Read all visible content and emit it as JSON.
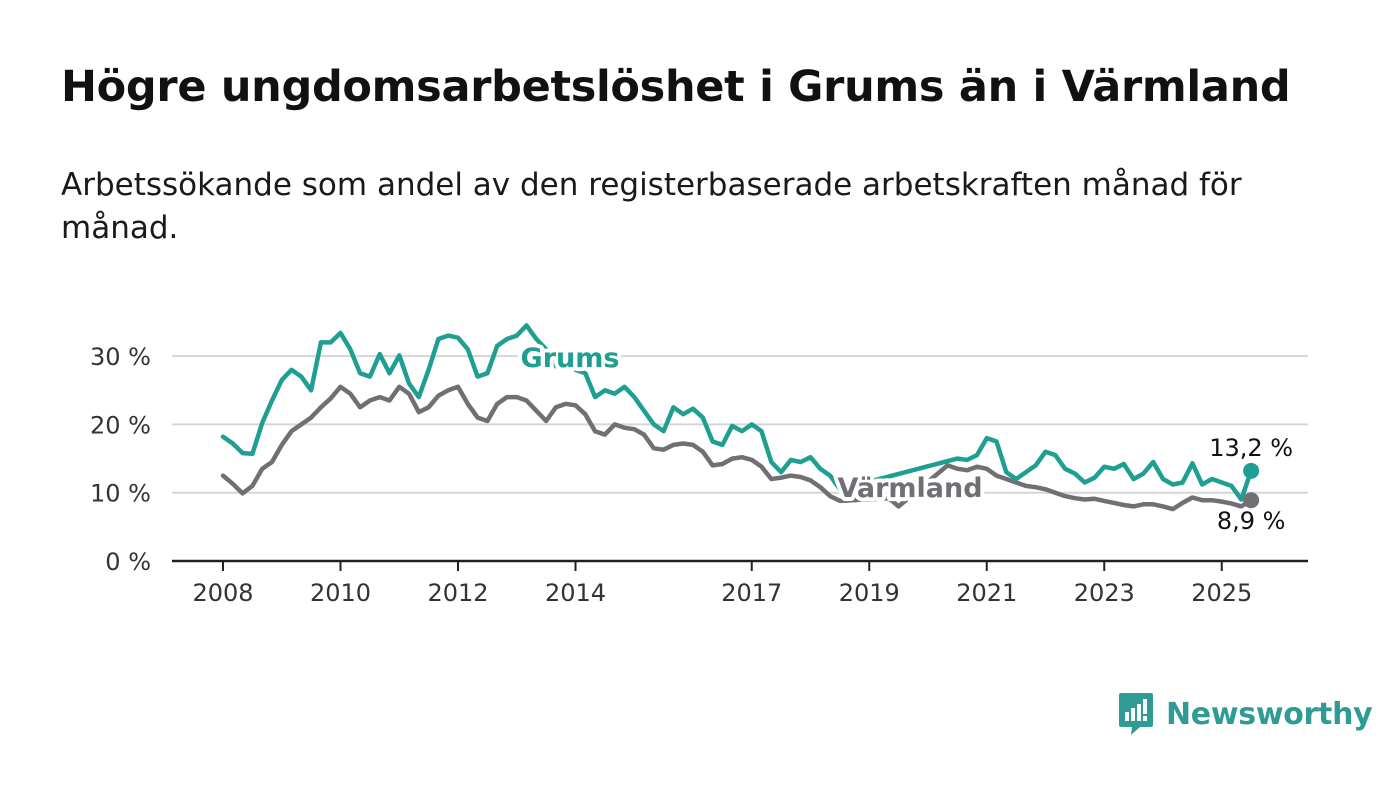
{
  "title": "Högre ungdomsarbetslöshet i Grums än i Värmland",
  "subtitle": "Arbetssökande som andel av den registerbaserade arbetskraften månad för månad.",
  "brand": {
    "name": "Newsworthy",
    "icon": "bar-chart-chat-icon"
  },
  "colors": {
    "accent": "#1f9e92",
    "secondary": "#716e74",
    "grid": "#d6d6d6",
    "axis": "#222222",
    "brand": "#2e9c94"
  },
  "chart_data": {
    "type": "line",
    "title": "Högre ungdomsarbetslöshet i Grums än i Värmland",
    "subtitle": "Arbetssökande som andel av den registerbaserade arbetskraften månad för månad.",
    "xlabel": "",
    "ylabel": "",
    "x_ticks": [
      "2008",
      "2010",
      "2012",
      "2014",
      "2017",
      "2019",
      "2021",
      "2023",
      "2025"
    ],
    "y_ticks": [
      "0 %",
      "10 %",
      "20 %",
      "30 %"
    ],
    "ylim": [
      0,
      30
    ],
    "grid": true,
    "legend": "inline labels",
    "series": [
      {
        "name": "Grums",
        "color": "#1f9e92",
        "end_label": "13,2 %",
        "points": [
          [
            "2008-01",
            18.2
          ],
          [
            "2008-03",
            17.2
          ],
          [
            "2008-05",
            15.8
          ],
          [
            "2008-07",
            15.7
          ],
          [
            "2008-09",
            20.2
          ],
          [
            "2008-11",
            23.5
          ],
          [
            "2009-01",
            26.5
          ],
          [
            "2009-03",
            28.0
          ],
          [
            "2009-05",
            27.0
          ],
          [
            "2009-07",
            25.0
          ],
          [
            "2009-09",
            32.0
          ],
          [
            "2009-11",
            32.0
          ],
          [
            "2010-01",
            33.4
          ],
          [
            "2010-03",
            31.0
          ],
          [
            "2010-05",
            27.5
          ],
          [
            "2010-07",
            27.0
          ],
          [
            "2010-09",
            30.3
          ],
          [
            "2010-11",
            27.5
          ],
          [
            "2011-01",
            30.1
          ],
          [
            "2011-03",
            26.0
          ],
          [
            "2011-05",
            24.0
          ],
          [
            "2011-07",
            28.0
          ],
          [
            "2011-09",
            32.5
          ],
          [
            "2011-11",
            33.0
          ],
          [
            "2012-01",
            32.7
          ],
          [
            "2012-03",
            31.0
          ],
          [
            "2012-05",
            27.0
          ],
          [
            "2012-07",
            27.5
          ],
          [
            "2012-09",
            31.5
          ],
          [
            "2012-11",
            32.5
          ],
          [
            "2013-01",
            33.0
          ],
          [
            "2013-03",
            34.5
          ],
          [
            "2013-05",
            32.5
          ],
          [
            "2013-07",
            31.0
          ],
          [
            "2013-09",
            28.5
          ],
          [
            "2013-11",
            29.0
          ],
          [
            "2014-01",
            28.0
          ],
          [
            "2014-03",
            27.5
          ],
          [
            "2014-05",
            24.0
          ],
          [
            "2014-07",
            25.0
          ],
          [
            "2014-09",
            24.5
          ],
          [
            "2014-11",
            25.5
          ],
          [
            "2015-01",
            24.0
          ],
          [
            "2015-03",
            22.0
          ],
          [
            "2015-05",
            20.0
          ],
          [
            "2015-07",
            19.0
          ],
          [
            "2015-09",
            22.5
          ],
          [
            "2015-11",
            21.5
          ],
          [
            "2016-01",
            22.3
          ],
          [
            "2016-03",
            21.0
          ],
          [
            "2016-05",
            17.5
          ],
          [
            "2016-07",
            17.0
          ],
          [
            "2016-09",
            19.8
          ],
          [
            "2016-11",
            19.0
          ],
          [
            "2017-01",
            20.0
          ],
          [
            "2017-03",
            19.0
          ],
          [
            "2017-05",
            14.5
          ],
          [
            "2017-07",
            13.0
          ],
          [
            "2017-09",
            14.8
          ],
          [
            "2017-11",
            14.5
          ],
          [
            "2018-01",
            15.2
          ],
          [
            "2018-03",
            13.5
          ],
          [
            "2018-05",
            12.5
          ],
          [
            "2018-07",
            10.5
          ],
          [
            "2020-07",
            15.0
          ],
          [
            "2020-09",
            14.8
          ],
          [
            "2020-11",
            15.5
          ],
          [
            "2021-01",
            18.0
          ],
          [
            "2021-03",
            17.5
          ],
          [
            "2021-05",
            13.0
          ],
          [
            "2021-07",
            12.0
          ],
          [
            "2021-09",
            13.0
          ],
          [
            "2021-11",
            14.0
          ],
          [
            "2022-01",
            16.0
          ],
          [
            "2022-03",
            15.5
          ],
          [
            "2022-05",
            13.5
          ],
          [
            "2022-07",
            12.8
          ],
          [
            "2022-09",
            11.5
          ],
          [
            "2022-11",
            12.2
          ],
          [
            "2023-01",
            13.8
          ],
          [
            "2023-03",
            13.5
          ],
          [
            "2023-05",
            14.2
          ],
          [
            "2023-07",
            12.0
          ],
          [
            "2023-09",
            12.8
          ],
          [
            "2023-11",
            14.5
          ],
          [
            "2024-01",
            12.0
          ],
          [
            "2024-03",
            11.2
          ],
          [
            "2024-05",
            11.5
          ],
          [
            "2024-07",
            14.3
          ],
          [
            "2024-09",
            11.2
          ],
          [
            "2024-11",
            12.0
          ],
          [
            "2025-01",
            11.5
          ],
          [
            "2025-03",
            11.0
          ],
          [
            "2025-05",
            9.0
          ],
          [
            "2025-07",
            13.2
          ]
        ]
      },
      {
        "name": "Värmland",
        "color": "#716e74",
        "end_label": "8,9 %",
        "points": [
          [
            "2008-01",
            12.5
          ],
          [
            "2008-03",
            11.3
          ],
          [
            "2008-05",
            9.9
          ],
          [
            "2008-07",
            11.0
          ],
          [
            "2008-09",
            13.5
          ],
          [
            "2008-11",
            14.5
          ],
          [
            "2009-01",
            17.0
          ],
          [
            "2009-03",
            19.0
          ],
          [
            "2009-05",
            20.0
          ],
          [
            "2009-07",
            21.0
          ],
          [
            "2009-09",
            22.5
          ],
          [
            "2009-11",
            23.8
          ],
          [
            "2010-01",
            25.5
          ],
          [
            "2010-03",
            24.5
          ],
          [
            "2010-05",
            22.5
          ],
          [
            "2010-07",
            23.5
          ],
          [
            "2010-09",
            24.0
          ],
          [
            "2010-11",
            23.5
          ],
          [
            "2011-01",
            25.5
          ],
          [
            "2011-03",
            24.5
          ],
          [
            "2011-05",
            21.8
          ],
          [
            "2011-07",
            22.5
          ],
          [
            "2011-09",
            24.2
          ],
          [
            "2011-11",
            25.0
          ],
          [
            "2012-01",
            25.5
          ],
          [
            "2012-03",
            23.0
          ],
          [
            "2012-05",
            21.0
          ],
          [
            "2012-07",
            20.5
          ],
          [
            "2012-09",
            23.0
          ],
          [
            "2012-11",
            24.0
          ],
          [
            "2013-01",
            24.0
          ],
          [
            "2013-03",
            23.5
          ],
          [
            "2013-05",
            22.0
          ],
          [
            "2013-07",
            20.5
          ],
          [
            "2013-09",
            22.5
          ],
          [
            "2013-11",
            23.0
          ],
          [
            "2014-01",
            22.8
          ],
          [
            "2014-03",
            21.5
          ],
          [
            "2014-05",
            19.0
          ],
          [
            "2014-07",
            18.5
          ],
          [
            "2014-09",
            20.0
          ],
          [
            "2014-11",
            19.5
          ],
          [
            "2015-01",
            19.3
          ],
          [
            "2015-03",
            18.5
          ],
          [
            "2015-05",
            16.5
          ],
          [
            "2015-07",
            16.3
          ],
          [
            "2015-09",
            17.0
          ],
          [
            "2015-11",
            17.2
          ],
          [
            "2016-01",
            17.0
          ],
          [
            "2016-03",
            16.0
          ],
          [
            "2016-05",
            14.0
          ],
          [
            "2016-07",
            14.2
          ],
          [
            "2016-09",
            15.0
          ],
          [
            "2016-11",
            15.2
          ],
          [
            "2017-01",
            14.8
          ],
          [
            "2017-03",
            13.8
          ],
          [
            "2017-05",
            12.0
          ],
          [
            "2017-07",
            12.2
          ],
          [
            "2017-09",
            12.5
          ],
          [
            "2017-11",
            12.3
          ],
          [
            "2018-01",
            11.8
          ],
          [
            "2018-03",
            10.8
          ],
          [
            "2018-05",
            9.5
          ],
          [
            "2018-07",
            8.8
          ],
          [
            "2019-05",
            9.2
          ],
          [
            "2019-07",
            8.0
          ],
          [
            "2020-05",
            14.0
          ],
          [
            "2020-07",
            13.5
          ],
          [
            "2020-09",
            13.3
          ],
          [
            "2020-11",
            13.8
          ],
          [
            "2021-01",
            13.5
          ],
          [
            "2021-03",
            12.5
          ],
          [
            "2021-05",
            12.0
          ],
          [
            "2021-07",
            11.5
          ],
          [
            "2021-09",
            11.0
          ],
          [
            "2021-11",
            10.8
          ],
          [
            "2022-01",
            10.5
          ],
          [
            "2022-03",
            10.0
          ],
          [
            "2022-05",
            9.5
          ],
          [
            "2022-07",
            9.2
          ],
          [
            "2022-09",
            9.0
          ],
          [
            "2022-11",
            9.1
          ],
          [
            "2023-01",
            8.8
          ],
          [
            "2023-03",
            8.5
          ],
          [
            "2023-05",
            8.2
          ],
          [
            "2023-07",
            8.0
          ],
          [
            "2023-09",
            8.3
          ],
          [
            "2023-11",
            8.3
          ],
          [
            "2024-01",
            8.0
          ],
          [
            "2024-03",
            7.6
          ],
          [
            "2024-05",
            8.5
          ],
          [
            "2024-07",
            9.3
          ],
          [
            "2024-09",
            8.9
          ],
          [
            "2024-11",
            8.9
          ],
          [
            "2025-01",
            8.7
          ],
          [
            "2025-03",
            8.4
          ],
          [
            "2025-05",
            8.0
          ],
          [
            "2025-07",
            8.9
          ]
        ]
      }
    ]
  }
}
